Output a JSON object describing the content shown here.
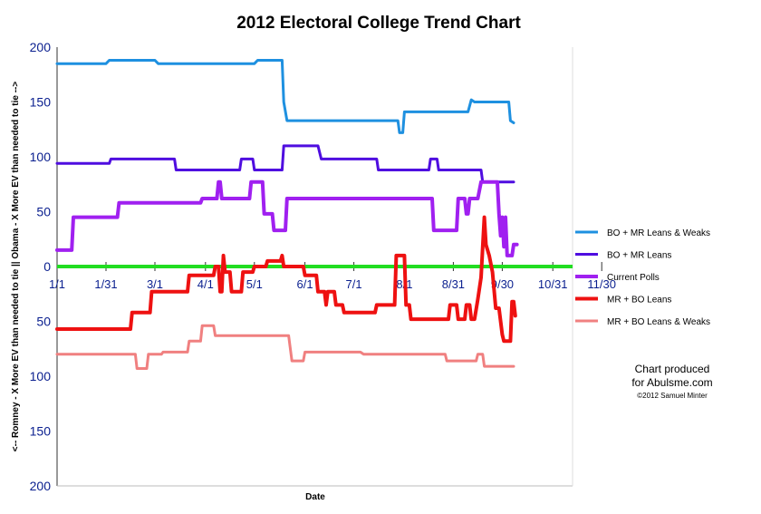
{
  "chart_data": {
    "type": "line",
    "title": "2012 Electoral College Trend Chart",
    "xlabel": "Date",
    "ylabel": "<-- Romney - X More EV than needed to tie  ||  Obama - X More EV than needed to tie -->",
    "x_tick_labels": [
      "1/1",
      "1/31",
      "3/1",
      "4/1",
      "5/1",
      "6/1",
      "7/1",
      "8/1",
      "8/31",
      "9/30",
      "10/31",
      "11/30"
    ],
    "x_tick_days": [
      0,
      30,
      60,
      91,
      121,
      152,
      182,
      213,
      243,
      273,
      304,
      334
    ],
    "y_tick_values": [
      200,
      150,
      100,
      50,
      0,
      -50,
      -100,
      -150,
      -200
    ],
    "y_tick_labels": [
      "200",
      "150",
      "100",
      "50",
      "0",
      "50",
      "100",
      "150",
      "200"
    ],
    "xlim_days": [
      0,
      334
    ],
    "ylim": [
      -200,
      200
    ],
    "zero_line_color": "#22dd22",
    "legend_position": "right",
    "series": [
      {
        "name": "BO + MR Leans & Weaks",
        "color": "#1e90e0",
        "points": [
          [
            0,
            185
          ],
          [
            30,
            185
          ],
          [
            32,
            188
          ],
          [
            60,
            188
          ],
          [
            62,
            185
          ],
          [
            121,
            185
          ],
          [
            123,
            188
          ],
          [
            138,
            188
          ],
          [
            139,
            150
          ],
          [
            141,
            133
          ],
          [
            209,
            133
          ],
          [
            210,
            122
          ],
          [
            212,
            122
          ],
          [
            213,
            141
          ],
          [
            252,
            141
          ],
          [
            254,
            152
          ],
          [
            256,
            150
          ],
          [
            277,
            150
          ],
          [
            278,
            133
          ],
          [
            280,
            131
          ]
        ]
      },
      {
        "name": "BO + MR Leans",
        "color": "#4f0de0",
        "points": [
          [
            0,
            94
          ],
          [
            32,
            94
          ],
          [
            33,
            98
          ],
          [
            72,
            98
          ],
          [
            73,
            88
          ],
          [
            112,
            88
          ],
          [
            113,
            98
          ],
          [
            120,
            98
          ],
          [
            121,
            88
          ],
          [
            138,
            88
          ],
          [
            139,
            110
          ],
          [
            160,
            110
          ],
          [
            162,
            98
          ],
          [
            196,
            98
          ],
          [
            197,
            88
          ],
          [
            228,
            88
          ],
          [
            229,
            98
          ],
          [
            233,
            98
          ],
          [
            234,
            88
          ],
          [
            260,
            88
          ],
          [
            261,
            77
          ],
          [
            280,
            77
          ]
        ]
      },
      {
        "name": "Current Polls",
        "color": "#a020f0",
        "points": [
          [
            0,
            15
          ],
          [
            9,
            15
          ],
          [
            10,
            45
          ],
          [
            37,
            45
          ],
          [
            38,
            58
          ],
          [
            88,
            58
          ],
          [
            89,
            62
          ],
          [
            98,
            62
          ],
          [
            99,
            77
          ],
          [
            100,
            77
          ],
          [
            101,
            62
          ],
          [
            118,
            62
          ],
          [
            119,
            77
          ],
          [
            126,
            77
          ],
          [
            127,
            48
          ],
          [
            132,
            48
          ],
          [
            133,
            33
          ],
          [
            140,
            33
          ],
          [
            141,
            62
          ],
          [
            230,
            62
          ],
          [
            231,
            33
          ],
          [
            245,
            33
          ],
          [
            246,
            62
          ],
          [
            250,
            62
          ],
          [
            251,
            48
          ],
          [
            252,
            48
          ],
          [
            253,
            62
          ],
          [
            258,
            62
          ],
          [
            260,
            77
          ],
          [
            270,
            77
          ],
          [
            271,
            48
          ],
          [
            272,
            28
          ],
          [
            273,
            45
          ],
          [
            274,
            18
          ],
          [
            275,
            45
          ],
          [
            276,
            10
          ],
          [
            279,
            10
          ],
          [
            280,
            20
          ],
          [
            282,
            20
          ]
        ]
      },
      {
        "name": "MR + BO Leans",
        "color": "#ee1111",
        "points": [
          [
            0,
            -57
          ],
          [
            45,
            -57
          ],
          [
            46,
            -42
          ],
          [
            57,
            -42
          ],
          [
            58,
            -23
          ],
          [
            80,
            -23
          ],
          [
            81,
            -8
          ],
          [
            96,
            -8
          ],
          [
            97,
            0
          ],
          [
            99,
            0
          ],
          [
            100,
            -23
          ],
          [
            101,
            -23
          ],
          [
            102,
            10
          ],
          [
            103,
            -5
          ],
          [
            106,
            -5
          ],
          [
            107,
            -23
          ],
          [
            113,
            -23
          ],
          [
            114,
            -5
          ],
          [
            120,
            -5
          ],
          [
            121,
            0
          ],
          [
            128,
            0
          ],
          [
            129,
            5
          ],
          [
            137,
            5
          ],
          [
            138,
            10
          ],
          [
            139,
            0
          ],
          [
            151,
            0
          ],
          [
            152,
            -8
          ],
          [
            159,
            -8
          ],
          [
            160,
            -23
          ],
          [
            164,
            -23
          ],
          [
            165,
            -35
          ],
          [
            166,
            -23
          ],
          [
            170,
            -23
          ],
          [
            171,
            -35
          ],
          [
            175,
            -35
          ],
          [
            176,
            -42
          ],
          [
            195,
            -42
          ],
          [
            196,
            -35
          ],
          [
            207,
            -35
          ],
          [
            208,
            10
          ],
          [
            213,
            10
          ],
          [
            214,
            -35
          ],
          [
            216,
            -35
          ],
          [
            217,
            -48
          ],
          [
            240,
            -48
          ],
          [
            241,
            -35
          ],
          [
            245,
            -35
          ],
          [
            246,
            -48
          ],
          [
            250,
            -48
          ],
          [
            251,
            -35
          ],
          [
            253,
            -35
          ],
          [
            254,
            -48
          ],
          [
            256,
            -48
          ],
          [
            258,
            -30
          ],
          [
            260,
            -10
          ],
          [
            262,
            45
          ],
          [
            263,
            20
          ],
          [
            265,
            10
          ],
          [
            267,
            -5
          ],
          [
            269,
            -38
          ],
          [
            271,
            -38
          ],
          [
            273,
            -62
          ],
          [
            274,
            -68
          ],
          [
            278,
            -68
          ],
          [
            279,
            -32
          ],
          [
            280,
            -32
          ],
          [
            281,
            -45
          ]
        ]
      },
      {
        "name": "MR + BO Leans & Weaks",
        "color": "#f08080",
        "points": [
          [
            0,
            -80
          ],
          [
            48,
            -80
          ],
          [
            49,
            -93
          ],
          [
            55,
            -93
          ],
          [
            56,
            -80
          ],
          [
            64,
            -80
          ],
          [
            65,
            -78
          ],
          [
            80,
            -78
          ],
          [
            81,
            -68
          ],
          [
            88,
            -68
          ],
          [
            89,
            -54
          ],
          [
            96,
            -54
          ],
          [
            97,
            -63
          ],
          [
            142,
            -63
          ],
          [
            144,
            -86
          ],
          [
            151,
            -86
          ],
          [
            152,
            -78
          ],
          [
            186,
            -78
          ],
          [
            188,
            -80
          ],
          [
            227,
            -80
          ],
          [
            228,
            -80
          ],
          [
            238,
            -80
          ],
          [
            239,
            -86
          ],
          [
            257,
            -86
          ],
          [
            258,
            -80
          ],
          [
            261,
            -80
          ],
          [
            262,
            -91
          ],
          [
            280,
            -91
          ]
        ]
      }
    ]
  },
  "credit": {
    "line1": "Chart produced",
    "line2": "for Abulsme.com",
    "line3": "©2012 Samuel Minter"
  }
}
